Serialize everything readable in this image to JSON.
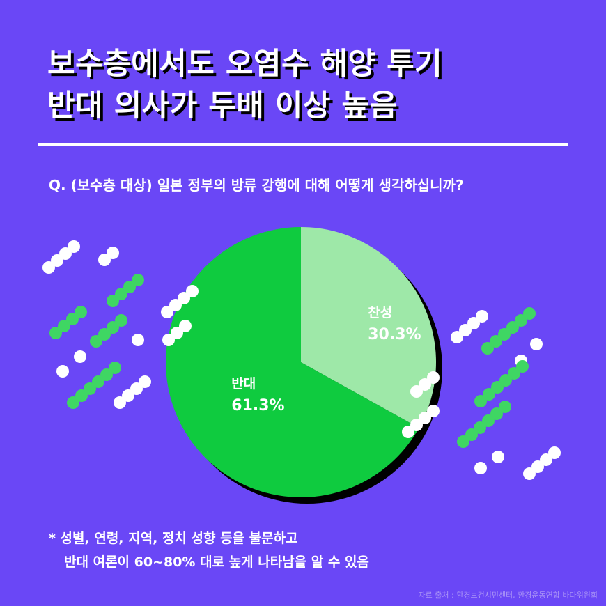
{
  "title": {
    "line1": "보수층에서도 오염수 해양 투기",
    "line2": "반대 의사가 두배 이상 높음"
  },
  "question": "Q. (보수층 대상) 일본 정부의 방류 강행에 대해 어떻게 생각하십니까?",
  "chart_data": {
    "type": "pie",
    "slices": [
      {
        "label": "찬성",
        "value": 30.3,
        "value_label": "30.3%",
        "color": "#9ee8a8"
      },
      {
        "label": "반대",
        "value": 61.3,
        "value_label": "61.3%",
        "color": "#0fcb3f"
      }
    ],
    "start_angle_deg": 0,
    "direction": "clockwise"
  },
  "footnote": {
    "line1": "* 성별, 연령, 지역, 정치 성향 등을 불문하고",
    "line2": "반대 여론이 60~80% 대로 높게 나타남을 알 수 있음"
  },
  "source": "자료 출처 : 환경보건시민센터, 환경운동연합 바다위원회",
  "colors": {
    "background": "#6a47f6",
    "dot_white": "#ffffff",
    "dot_green": "#3fd663",
    "shadow": "#000000"
  }
}
